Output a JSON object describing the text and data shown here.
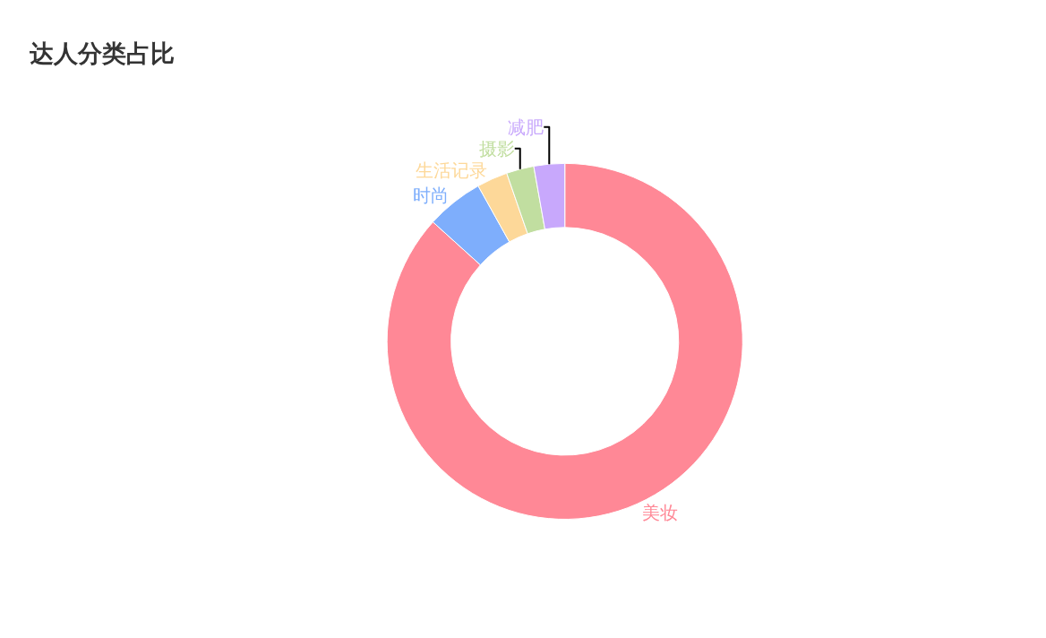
{
  "chart_data": {
    "type": "donut",
    "title": "达人分类占比",
    "categories": [
      "美妆",
      "时尚",
      "生活记录",
      "摄影",
      "减肥"
    ],
    "values": [
      86.7,
      5.2,
      2.8,
      2.5,
      2.8
    ],
    "colors": [
      "#ff8896",
      "#7eaefc",
      "#fdd899",
      "#c1dea0",
      "#c8a8fc"
    ]
  }
}
